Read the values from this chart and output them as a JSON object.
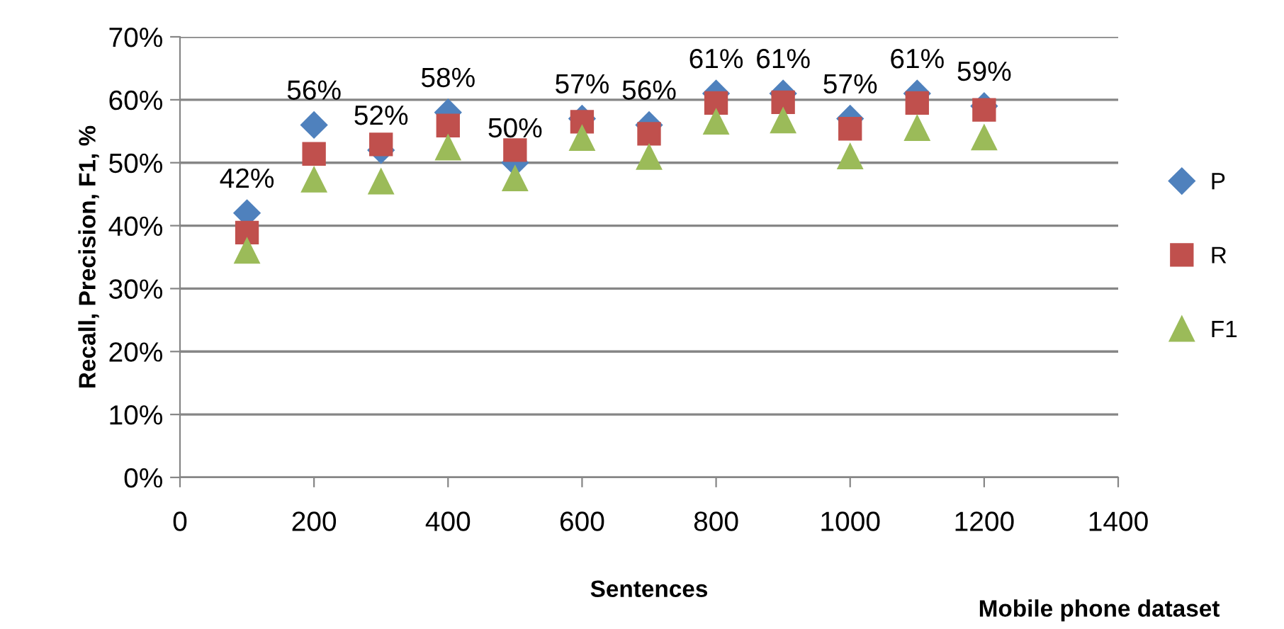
{
  "chart_data": {
    "type": "scatter",
    "xlabel": "Sentences",
    "ylabel": "Recall, Precision, F1, %",
    "x": [
      100,
      200,
      300,
      400,
      500,
      600,
      700,
      800,
      900,
      1000,
      1100,
      1200
    ],
    "series": [
      {
        "name": "P",
        "color": "#4f81bd",
        "marker": "diamond",
        "values": [
          42,
          56,
          52,
          58,
          50,
          57,
          56,
          61,
          61,
          57,
          61,
          59
        ],
        "value_labels": [
          "42%",
          "56%",
          "52%",
          "58%",
          "50%",
          "57%",
          "56%",
          "61%",
          "61%",
          "57%",
          "61%",
          "59%"
        ]
      },
      {
        "name": "R",
        "color": "#c0504d",
        "marker": "square",
        "values": [
          38.9,
          51.4,
          52.9,
          55.9,
          52,
          56.5,
          54.6,
          59.5,
          59.6,
          55.4,
          59.5,
          58.4
        ]
      },
      {
        "name": "F1",
        "color": "#9bbb59",
        "marker": "triangle",
        "values": [
          36,
          47.3,
          47,
          52.4,
          47.5,
          53.9,
          50.9,
          56.5,
          56.7,
          51,
          55.5,
          54
        ]
      }
    ],
    "xlim": [
      0,
      1400
    ],
    "xticks": [
      0,
      200,
      400,
      600,
      800,
      1000,
      1200,
      1400
    ],
    "ylim": [
      0,
      70
    ],
    "yticks": [
      {
        "value": 0,
        "label": "0%"
      },
      {
        "value": 10,
        "label": "10%"
      },
      {
        "value": 20,
        "label": "20%"
      },
      {
        "value": 30,
        "label": "30%"
      },
      {
        "value": 40,
        "label": "40%"
      },
      {
        "value": 50,
        "label": "50%"
      },
      {
        "value": 60,
        "label": "60%"
      },
      {
        "value": 70,
        "label": "70%"
      }
    ],
    "grid": "y",
    "legend": "right",
    "annotations": [
      "Mobile phone dataset"
    ]
  }
}
